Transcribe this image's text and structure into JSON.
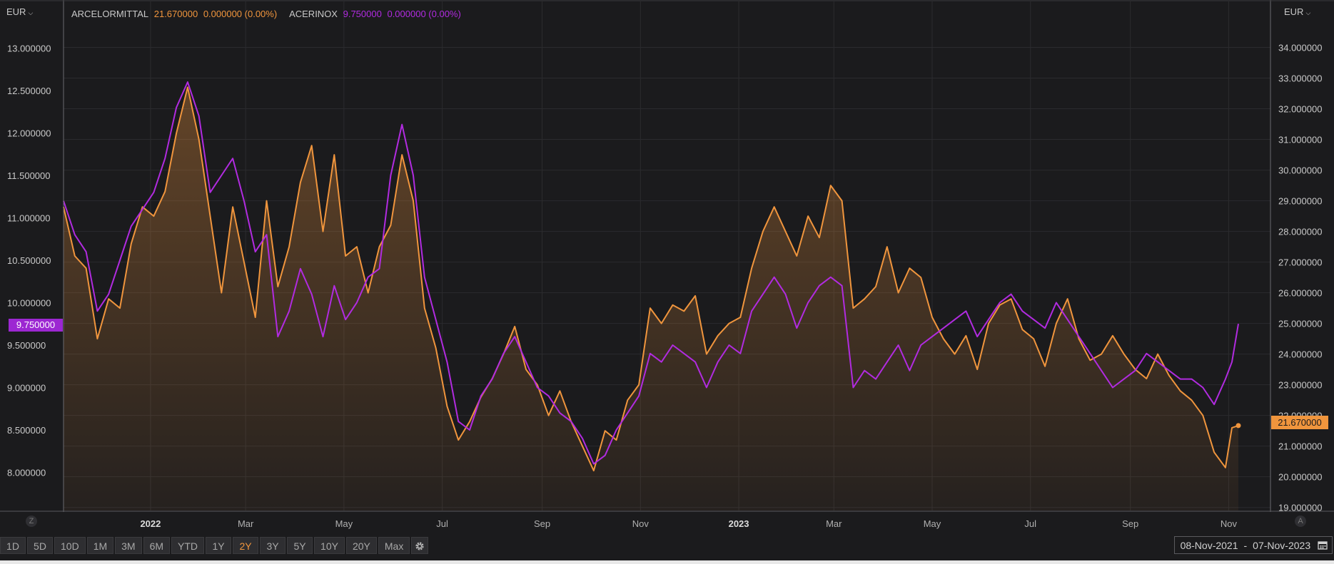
{
  "currency_left": "EUR",
  "currency_right": "EUR",
  "legend": [
    {
      "name": "ARCELORMITTAL",
      "value": "21.670000",
      "change": "0.000000 (0.00%)",
      "color": "#f0953d"
    },
    {
      "name": "ACERINOX",
      "value": "9.750000",
      "change": "0.000000 (0.00%)",
      "color": "#b12be0"
    }
  ],
  "left_badge": "9.750000",
  "right_badge": "21.670000",
  "zoom_left": "Z",
  "zoom_right": "A",
  "toolbar": {
    "buttons": [
      "1D",
      "5D",
      "10D",
      "1M",
      "3M",
      "6M",
      "YTD",
      "1Y",
      "2Y",
      "3Y",
      "5Y",
      "10Y",
      "20Y",
      "Max"
    ],
    "active": "2Y"
  },
  "date_range": {
    "start": "08-Nov-2021",
    "end": "07-Nov-2023"
  },
  "chart_data": {
    "type": "line",
    "x_ticks": [
      {
        "label": "2022",
        "date": "2022-01-01",
        "bold": true
      },
      {
        "label": "Mar",
        "date": "2022-03-01"
      },
      {
        "label": "May",
        "date": "2022-05-01"
      },
      {
        "label": "Jul",
        "date": "2022-07-01"
      },
      {
        "label": "Sep",
        "date": "2022-09-01"
      },
      {
        "label": "Nov",
        "date": "2022-11-01"
      },
      {
        "label": "2023",
        "date": "2023-01-01",
        "bold": true
      },
      {
        "label": "Mar",
        "date": "2023-03-01"
      },
      {
        "label": "May",
        "date": "2023-05-01"
      },
      {
        "label": "Jul",
        "date": "2023-07-01"
      },
      {
        "label": "Sep",
        "date": "2023-09-01"
      },
      {
        "label": "Nov",
        "date": "2023-11-01"
      }
    ],
    "x_range": [
      "2021-11-08",
      "2023-11-07"
    ],
    "y_left": {
      "range": [
        7.55,
        13.55
      ],
      "ticks": [
        "8.000000",
        "8.500000",
        "9.000000",
        "9.500000",
        "10.000000",
        "10.500000",
        "11.000000",
        "11.500000",
        "12.000000",
        "12.500000",
        "13.000000"
      ]
    },
    "y_right": {
      "range": [
        18.9,
        35.5
      ],
      "ticks": [
        "19.000000",
        "20.000000",
        "21.000000",
        "22.000000",
        "23.000000",
        "24.000000",
        "25.000000",
        "26.000000",
        "27.000000",
        "28.000000",
        "29.000000",
        "30.000000",
        "31.000000",
        "32.000000",
        "33.000000",
        "34.000000"
      ]
    },
    "grid": true,
    "series": [
      {
        "name": "ARCELORMITTAL",
        "axis": "right",
        "color": "#f0953d",
        "fill": true,
        "points": [
          [
            "2021-11-08",
            28.8
          ],
          [
            "2021-11-15",
            27.2
          ],
          [
            "2021-11-22",
            26.8
          ],
          [
            "2021-11-29",
            24.5
          ],
          [
            "2021-12-06",
            25.8
          ],
          [
            "2021-12-13",
            25.5
          ],
          [
            "2021-12-20",
            27.6
          ],
          [
            "2021-12-27",
            28.8
          ],
          [
            "2022-01-03",
            28.5
          ],
          [
            "2022-01-10",
            29.3
          ],
          [
            "2022-01-17",
            31.2
          ],
          [
            "2022-01-24",
            32.7
          ],
          [
            "2022-01-31",
            31.0
          ],
          [
            "2022-02-07",
            28.5
          ],
          [
            "2022-02-14",
            26.0
          ],
          [
            "2022-02-21",
            28.8
          ],
          [
            "2022-02-28",
            27.0
          ],
          [
            "2022-03-07",
            25.2
          ],
          [
            "2022-03-14",
            29.0
          ],
          [
            "2022-03-21",
            26.2
          ],
          [
            "2022-03-28",
            27.5
          ],
          [
            "2022-04-04",
            29.6
          ],
          [
            "2022-04-11",
            30.8
          ],
          [
            "2022-04-18",
            28.0
          ],
          [
            "2022-04-25",
            30.5
          ],
          [
            "2022-05-02",
            27.2
          ],
          [
            "2022-05-09",
            27.5
          ],
          [
            "2022-05-16",
            26.0
          ],
          [
            "2022-05-23",
            27.5
          ],
          [
            "2022-05-30",
            28.2
          ],
          [
            "2022-06-06",
            30.5
          ],
          [
            "2022-06-13",
            29.0
          ],
          [
            "2022-06-20",
            25.5
          ],
          [
            "2022-06-27",
            24.2
          ],
          [
            "2022-07-04",
            22.3
          ],
          [
            "2022-07-11",
            21.2
          ],
          [
            "2022-07-18",
            21.8
          ],
          [
            "2022-07-25",
            22.6
          ],
          [
            "2022-08-01",
            23.2
          ],
          [
            "2022-08-08",
            24.0
          ],
          [
            "2022-08-15",
            24.9
          ],
          [
            "2022-08-22",
            23.5
          ],
          [
            "2022-08-29",
            23.0
          ],
          [
            "2022-09-05",
            22.0
          ],
          [
            "2022-09-12",
            22.8
          ],
          [
            "2022-09-19",
            21.8
          ],
          [
            "2022-09-26",
            21.0
          ],
          [
            "2022-10-03",
            20.2
          ],
          [
            "2022-10-10",
            21.5
          ],
          [
            "2022-10-17",
            21.2
          ],
          [
            "2022-10-24",
            22.5
          ],
          [
            "2022-10-31",
            23.0
          ],
          [
            "2022-11-07",
            25.5
          ],
          [
            "2022-11-14",
            25.0
          ],
          [
            "2022-11-21",
            25.6
          ],
          [
            "2022-11-28",
            25.4
          ],
          [
            "2022-12-05",
            25.9
          ],
          [
            "2022-12-12",
            24.0
          ],
          [
            "2022-12-19",
            24.6
          ],
          [
            "2022-12-26",
            25.0
          ],
          [
            "2023-01-02",
            25.2
          ],
          [
            "2023-01-09",
            26.8
          ],
          [
            "2023-01-16",
            28.0
          ],
          [
            "2023-01-23",
            28.8
          ],
          [
            "2023-01-30",
            28.0
          ],
          [
            "2023-02-06",
            27.2
          ],
          [
            "2023-02-13",
            28.5
          ],
          [
            "2023-02-20",
            27.8
          ],
          [
            "2023-02-27",
            29.5
          ],
          [
            "2023-03-06",
            29.0
          ],
          [
            "2023-03-13",
            25.5
          ],
          [
            "2023-03-20",
            25.8
          ],
          [
            "2023-03-27",
            26.2
          ],
          [
            "2023-04-03",
            27.5
          ],
          [
            "2023-04-10",
            26.0
          ],
          [
            "2023-04-17",
            26.8
          ],
          [
            "2023-04-24",
            26.5
          ],
          [
            "2023-05-01",
            25.2
          ],
          [
            "2023-05-08",
            24.5
          ],
          [
            "2023-05-15",
            24.0
          ],
          [
            "2023-05-22",
            24.6
          ],
          [
            "2023-05-29",
            23.5
          ],
          [
            "2023-06-05",
            25.0
          ],
          [
            "2023-06-12",
            25.6
          ],
          [
            "2023-06-19",
            25.8
          ],
          [
            "2023-06-26",
            24.8
          ],
          [
            "2023-07-03",
            24.5
          ],
          [
            "2023-07-10",
            23.6
          ],
          [
            "2023-07-17",
            25.0
          ],
          [
            "2023-07-24",
            25.8
          ],
          [
            "2023-07-31",
            24.5
          ],
          [
            "2023-08-07",
            23.8
          ],
          [
            "2023-08-14",
            24.0
          ],
          [
            "2023-08-21",
            24.6
          ],
          [
            "2023-08-28",
            24.0
          ],
          [
            "2023-09-04",
            23.5
          ],
          [
            "2023-09-11",
            23.2
          ],
          [
            "2023-09-18",
            24.0
          ],
          [
            "2023-09-25",
            23.3
          ],
          [
            "2023-10-02",
            22.8
          ],
          [
            "2023-10-09",
            22.5
          ],
          [
            "2023-10-16",
            22.0
          ],
          [
            "2023-10-23",
            20.8
          ],
          [
            "2023-10-30",
            20.3
          ],
          [
            "2023-11-03",
            21.6
          ],
          [
            "2023-11-07",
            21.67
          ]
        ]
      },
      {
        "name": "ACERINOX",
        "axis": "left",
        "color": "#b12be0",
        "fill": false,
        "points": [
          [
            "2021-11-08",
            11.2
          ],
          [
            "2021-11-15",
            10.8
          ],
          [
            "2021-11-22",
            10.6
          ],
          [
            "2021-11-29",
            9.9
          ],
          [
            "2021-12-06",
            10.1
          ],
          [
            "2021-12-13",
            10.5
          ],
          [
            "2021-12-20",
            10.9
          ],
          [
            "2021-12-27",
            11.1
          ],
          [
            "2022-01-03",
            11.3
          ],
          [
            "2022-01-10",
            11.7
          ],
          [
            "2022-01-17",
            12.3
          ],
          [
            "2022-01-24",
            12.6
          ],
          [
            "2022-01-31",
            12.2
          ],
          [
            "2022-02-07",
            11.3
          ],
          [
            "2022-02-14",
            11.5
          ],
          [
            "2022-02-21",
            11.7
          ],
          [
            "2022-02-28",
            11.2
          ],
          [
            "2022-03-07",
            10.6
          ],
          [
            "2022-03-14",
            10.8
          ],
          [
            "2022-03-21",
            9.6
          ],
          [
            "2022-03-28",
            9.9
          ],
          [
            "2022-04-04",
            10.4
          ],
          [
            "2022-04-11",
            10.1
          ],
          [
            "2022-04-18",
            9.6
          ],
          [
            "2022-04-25",
            10.2
          ],
          [
            "2022-05-02",
            9.8
          ],
          [
            "2022-05-09",
            10.0
          ],
          [
            "2022-05-16",
            10.3
          ],
          [
            "2022-05-23",
            10.4
          ],
          [
            "2022-05-30",
            11.5
          ],
          [
            "2022-06-06",
            12.1
          ],
          [
            "2022-06-13",
            11.5
          ],
          [
            "2022-06-20",
            10.3
          ],
          [
            "2022-06-27",
            9.8
          ],
          [
            "2022-07-04",
            9.3
          ],
          [
            "2022-07-11",
            8.6
          ],
          [
            "2022-07-18",
            8.5
          ],
          [
            "2022-07-25",
            8.9
          ],
          [
            "2022-08-01",
            9.1
          ],
          [
            "2022-08-08",
            9.4
          ],
          [
            "2022-08-15",
            9.6
          ],
          [
            "2022-08-22",
            9.3
          ],
          [
            "2022-08-29",
            9.0
          ],
          [
            "2022-09-05",
            8.9
          ],
          [
            "2022-09-12",
            8.7
          ],
          [
            "2022-09-19",
            8.6
          ],
          [
            "2022-09-26",
            8.4
          ],
          [
            "2022-10-03",
            8.1
          ],
          [
            "2022-10-10",
            8.2
          ],
          [
            "2022-10-17",
            8.5
          ],
          [
            "2022-10-24",
            8.7
          ],
          [
            "2022-10-31",
            8.9
          ],
          [
            "2022-11-07",
            9.4
          ],
          [
            "2022-11-14",
            9.3
          ],
          [
            "2022-11-21",
            9.5
          ],
          [
            "2022-11-28",
            9.4
          ],
          [
            "2022-12-05",
            9.3
          ],
          [
            "2022-12-12",
            9.0
          ],
          [
            "2022-12-19",
            9.3
          ],
          [
            "2022-12-26",
            9.5
          ],
          [
            "2023-01-02",
            9.4
          ],
          [
            "2023-01-09",
            9.9
          ],
          [
            "2023-01-16",
            10.1
          ],
          [
            "2023-01-23",
            10.3
          ],
          [
            "2023-01-30",
            10.1
          ],
          [
            "2023-02-06",
            9.7
          ],
          [
            "2023-02-13",
            10.0
          ],
          [
            "2023-02-20",
            10.2
          ],
          [
            "2023-02-27",
            10.3
          ],
          [
            "2023-03-06",
            10.2
          ],
          [
            "2023-03-13",
            9.0
          ],
          [
            "2023-03-20",
            9.2
          ],
          [
            "2023-03-27",
            9.1
          ],
          [
            "2023-04-03",
            9.3
          ],
          [
            "2023-04-10",
            9.5
          ],
          [
            "2023-04-17",
            9.2
          ],
          [
            "2023-04-24",
            9.5
          ],
          [
            "2023-05-01",
            9.6
          ],
          [
            "2023-05-08",
            9.7
          ],
          [
            "2023-05-15",
            9.8
          ],
          [
            "2023-05-22",
            9.9
          ],
          [
            "2023-05-29",
            9.6
          ],
          [
            "2023-06-05",
            9.8
          ],
          [
            "2023-06-12",
            10.0
          ],
          [
            "2023-06-19",
            10.1
          ],
          [
            "2023-06-26",
            9.9
          ],
          [
            "2023-07-03",
            9.8
          ],
          [
            "2023-07-10",
            9.7
          ],
          [
            "2023-07-17",
            10.0
          ],
          [
            "2023-07-24",
            9.8
          ],
          [
            "2023-07-31",
            9.6
          ],
          [
            "2023-08-07",
            9.4
          ],
          [
            "2023-08-14",
            9.2
          ],
          [
            "2023-08-21",
            9.0
          ],
          [
            "2023-08-28",
            9.1
          ],
          [
            "2023-09-04",
            9.2
          ],
          [
            "2023-09-11",
            9.4
          ],
          [
            "2023-09-18",
            9.3
          ],
          [
            "2023-09-25",
            9.2
          ],
          [
            "2023-10-02",
            9.1
          ],
          [
            "2023-10-09",
            9.1
          ],
          [
            "2023-10-16",
            9.0
          ],
          [
            "2023-10-23",
            8.8
          ],
          [
            "2023-10-30",
            9.1
          ],
          [
            "2023-11-03",
            9.3
          ],
          [
            "2023-11-07",
            9.75
          ]
        ]
      }
    ]
  }
}
